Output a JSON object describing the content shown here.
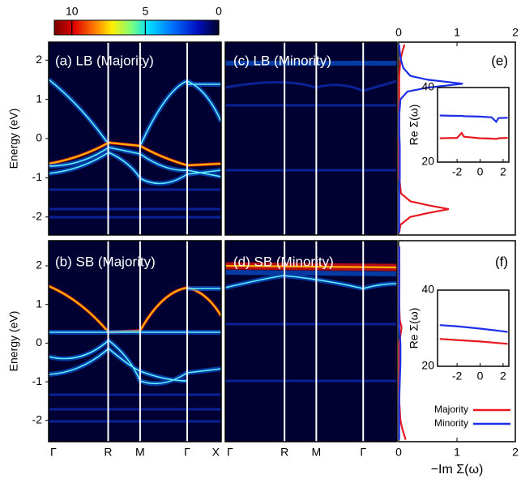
{
  "chart_data": [
    {
      "type": "heatmap",
      "title": "(a) LB (Majority)",
      "ylabel": "Energy (eV)",
      "ylim": [
        -2.46,
        2.46
      ],
      "yticks": [
        -2,
        -1,
        0,
        1,
        2
      ],
      "clim": [
        11.2,
        0
      ],
      "cticks": [
        10,
        5,
        0
      ]
    },
    {
      "type": "heatmap",
      "title": "(c) LB (Minority)"
    },
    {
      "type": "line",
      "label": "(e)",
      "xlim": [
        0,
        2
      ],
      "xticks": [
        0,
        1,
        2
      ],
      "ylim": [
        -2.46,
        2.46
      ],
      "y": [
        -2.4,
        -2.2,
        -2.0,
        -1.9,
        -1.8,
        -1.7,
        -1.6,
        -1.4,
        -1.0,
        -0.6,
        -0.2,
        0.2,
        0.6,
        1.0,
        1.2,
        1.3,
        1.4,
        1.5,
        1.6,
        1.8,
        2.0,
        2.2,
        2.4
      ],
      "series": [
        {
          "color": "#e8191e",
          "values": [
            0.01,
            0.03,
            0.2,
            0.5,
            0.86,
            0.5,
            0.2,
            0.04,
            0.01,
            0.01,
            0.01,
            0.01,
            0.01,
            0.01,
            0.01,
            0.01,
            0.01,
            0.01,
            0.01,
            0.02,
            0.03,
            0.06,
            0.1
          ]
        },
        {
          "color": "#1c2ee6",
          "values": [
            0.01,
            0.01,
            0.01,
            0.01,
            0.01,
            0.01,
            0.01,
            0.01,
            0.02,
            0.02,
            0.02,
            0.01,
            0.01,
            0.03,
            0.15,
            0.5,
            1.1,
            0.5,
            0.2,
            0.08,
            0.04,
            0.02,
            0.01
          ]
        }
      ],
      "inset": {
        "ylabel": "Re Σ(ω)",
        "xlim": [
          -3.7,
          2.5
        ],
        "xticks": [
          -2,
          0,
          2
        ],
        "ylim": [
          20,
          40
        ],
        "yticks": [
          20,
          40
        ],
        "x": [
          -3.5,
          -2,
          -1.6,
          -1.4,
          0,
          1,
          1.4,
          1.6,
          2.4
        ],
        "series": [
          {
            "color": "#e8191e",
            "values": [
              26.4,
              26.5,
              27.8,
              26.8,
              26.4,
              26.3,
              26.2,
              26.4,
              26.5
            ]
          },
          {
            "color": "#1c2ee6",
            "values": [
              32.5,
              32.4,
              32.4,
              32.3,
              32.2,
              32.0,
              30.8,
              31.8,
              31.9
            ]
          }
        ]
      }
    },
    {
      "type": "heatmap",
      "title": "(b) SB (Majority)",
      "ylabel": "Energy (eV)",
      "ylim": [
        -2.55,
        2.65
      ],
      "yticks": [
        -2,
        -1,
        0,
        1,
        2
      ],
      "kpoints": [
        "Γ",
        "R",
        "M",
        "Γ",
        "X"
      ]
    },
    {
      "type": "heatmap",
      "title": "(d) SB (Minority)",
      "kpoints": [
        "Γ",
        "R",
        "M",
        "Γ"
      ]
    },
    {
      "type": "line",
      "label": "(f)",
      "xlabel": "−Im Σ(ω)",
      "xlim": [
        0,
        2
      ],
      "xticks": [
        0,
        1,
        2
      ],
      "ylim": [
        -2.55,
        2.65
      ],
      "y": [
        -2.5,
        -2.2,
        -2.0,
        -1.5,
        -1.0,
        -0.5,
        0,
        0.2,
        0.4,
        0.6,
        1.0,
        1.5,
        2.0,
        2.5
      ],
      "series": [
        {
          "name": "Majority",
          "color": "#e8191e",
          "values": [
            0.12,
            0.06,
            0.03,
            0.01,
            0.01,
            0.01,
            0.01,
            0.03,
            0.05,
            0.02,
            0.01,
            0.01,
            0.01,
            0.01
          ]
        },
        {
          "name": "Minority",
          "color": "#1c2ee6",
          "values": [
            0.01,
            0.01,
            0.01,
            0.01,
            0.02,
            0.03,
            0.03,
            0.02,
            0.01,
            0.01,
            0.01,
            0.01,
            0.01,
            0.01
          ]
        }
      ],
      "inset": {
        "ylabel": "Re Σ(ω)",
        "xlim": [
          -3.7,
          2.5
        ],
        "xticks": [
          -2,
          0,
          2
        ],
        "ylim": [
          20,
          40
        ],
        "yticks": [
          20,
          40
        ],
        "x": [
          -3.5,
          -2,
          0,
          2,
          2.4
        ],
        "series": [
          {
            "color": "#e8191e",
            "values": [
              27.2,
              26.9,
              26.5,
              26.0,
              25.9
            ]
          },
          {
            "color": "#1c2ee6",
            "values": [
              30.8,
              30.5,
              29.9,
              29.2,
              29.0
            ]
          }
        ]
      }
    }
  ]
}
